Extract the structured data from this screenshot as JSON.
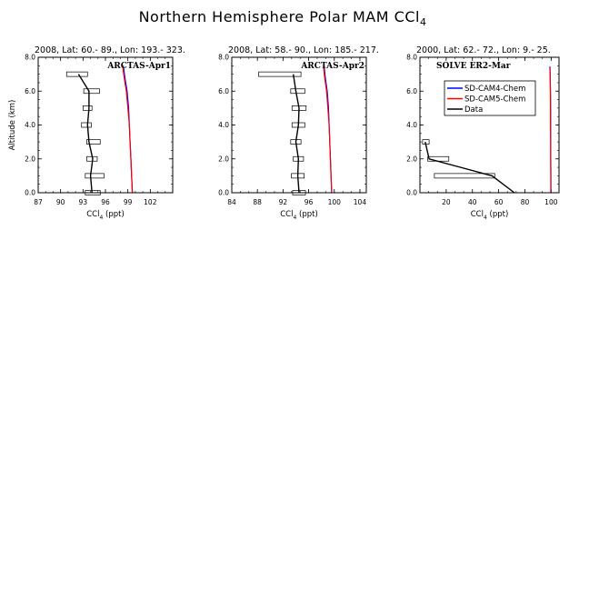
{
  "figure": {
    "title": "Northern Hemisphere Polar MAM CCl",
    "title_sub": "4"
  },
  "chart_data": [
    {
      "type": "line",
      "subtitle": "2008, Lat:  60.- 89., Lon: 193.- 323.",
      "panel_label": "ARCTAS-Apr1",
      "xlabel": "CCl",
      "xlabel_sub": "4",
      "xlabel_unit": " (ppt)",
      "ylabel": "Altitude (km)",
      "xlim": [
        87,
        105
      ],
      "ylim": [
        0,
        8
      ],
      "xticks": [
        87,
        90,
        93,
        96,
        99,
        102
      ],
      "yticks": [
        0,
        2,
        4,
        6,
        8
      ],
      "ytick_labels": [
        "0.0",
        "2.0",
        "4.0",
        "6.0",
        "8.0"
      ],
      "series": [
        {
          "name": "SD-CAM4-Chem",
          "color": "#0000ff",
          "x": [
            99.6,
            99.5,
            99.4,
            99.3,
            99.2,
            99.1,
            98.9,
            98.6,
            98.4
          ],
          "y": [
            0,
            1,
            2,
            3,
            4,
            5,
            6,
            6.8,
            7.5
          ]
        },
        {
          "name": "SD-CAM5-Chem",
          "color": "#ff0000",
          "x": [
            99.6,
            99.5,
            99.4,
            99.3,
            99.2,
            99.0,
            98.8,
            98.5,
            98.3
          ],
          "y": [
            0,
            1,
            2,
            3,
            4,
            5,
            6,
            6.8,
            7.5
          ]
        },
        {
          "name": "Data",
          "color": "#000000",
          "x": [
            94.2,
            94.0,
            94.3,
            93.8,
            93.6,
            93.8,
            93.8,
            92.4
          ],
          "y": [
            0,
            1,
            2,
            3,
            4,
            5,
            6,
            7
          ]
        }
      ],
      "ranges": [
        {
          "y": 0,
          "lo": 93.3,
          "hi": 95.3
        },
        {
          "y": 1,
          "lo": 93.3,
          "hi": 95.8
        },
        {
          "y": 2,
          "lo": 93.5,
          "hi": 94.9
        },
        {
          "y": 3,
          "lo": 93.5,
          "hi": 95.3
        },
        {
          "y": 4,
          "lo": 92.8,
          "hi": 94.1
        },
        {
          "y": 5,
          "lo": 93.0,
          "hi": 94.2
        },
        {
          "y": 6,
          "lo": 93.1,
          "hi": 95.2
        },
        {
          "y": 7,
          "lo": 90.8,
          "hi": 93.6
        }
      ]
    },
    {
      "type": "line",
      "subtitle": "2008, Lat:  58.- 90., Lon: 185.- 217.",
      "panel_label": "ARCTAS-Apr2",
      "xlabel": "CCl",
      "xlabel_sub": "4",
      "xlabel_unit": " (ppt)",
      "ylabel": "",
      "xlim": [
        84,
        105
      ],
      "ylim": [
        0,
        8
      ],
      "xticks": [
        84,
        88,
        92,
        96,
        100,
        104
      ],
      "yticks": [
        0,
        2,
        4,
        6,
        8
      ],
      "ytick_labels": [
        "0.0",
        "2.0",
        "4.0",
        "6.0",
        "8.0"
      ],
      "series": [
        {
          "name": "SD-CAM4-Chem",
          "color": "#0000ff",
          "x": [
            99.6,
            99.5,
            99.4,
            99.3,
            99.2,
            99.1,
            98.9,
            98.6,
            98.4
          ],
          "y": [
            0,
            1,
            2,
            3,
            4,
            5,
            6,
            6.8,
            7.5
          ]
        },
        {
          "name": "SD-CAM5-Chem",
          "color": "#ff0000",
          "x": [
            99.6,
            99.5,
            99.4,
            99.3,
            99.2,
            99.0,
            98.8,
            98.5,
            98.3
          ],
          "y": [
            0,
            1,
            2,
            3,
            4,
            5,
            6,
            6.8,
            7.5
          ]
        },
        {
          "name": "Data",
          "color": "#000000",
          "x": [
            94.5,
            94.3,
            94.4,
            94.0,
            94.4,
            94.5,
            94.0,
            93.6
          ],
          "y": [
            0,
            1,
            2,
            3,
            4,
            5,
            6,
            7
          ]
        }
      ],
      "ranges": [
        {
          "y": 0,
          "lo": 93.5,
          "hi": 95.5
        },
        {
          "y": 1,
          "lo": 93.3,
          "hi": 95.3
        },
        {
          "y": 2,
          "lo": 93.6,
          "hi": 95.2
        },
        {
          "y": 3,
          "lo": 93.2,
          "hi": 94.8
        },
        {
          "y": 4,
          "lo": 93.4,
          "hi": 95.4
        },
        {
          "y": 5,
          "lo": 93.4,
          "hi": 95.6
        },
        {
          "y": 6,
          "lo": 93.2,
          "hi": 95.4
        },
        {
          "y": 7,
          "lo": 88.2,
          "hi": 94.8
        }
      ]
    },
    {
      "type": "line",
      "subtitle": "2000, Lat: 62.- 72., Lon: 9.- 25.",
      "panel_label": "SOLVE ER2-Mar",
      "xlabel": "CCl",
      "xlabel_sub": "4",
      "xlabel_unit": " (ppt)",
      "ylabel": "",
      "xlim": [
        0,
        106
      ],
      "ylim": [
        0,
        8
      ],
      "xticks": [
        20,
        40,
        60,
        80,
        100
      ],
      "yticks": [
        0,
        2,
        4,
        6,
        8
      ],
      "ytick_labels": [
        "0.0",
        "2.0",
        "4.0",
        "6.0",
        "8.0"
      ],
      "series": [
        {
          "name": "SD-CAM4-Chem",
          "color": "#0000ff",
          "x": [
            99.8,
            99.8,
            99.7,
            99.7,
            99.6,
            99.6,
            99.5,
            99.3,
            99.1
          ],
          "y": [
            0,
            1,
            2,
            3,
            4,
            5,
            6,
            7,
            7.45
          ]
        },
        {
          "name": "SD-CAM5-Chem",
          "color": "#ff0000",
          "x": [
            99.7,
            99.7,
            99.6,
            99.6,
            99.5,
            99.5,
            99.4,
            99.2,
            99.0
          ],
          "y": [
            0,
            1,
            2,
            3,
            4,
            5,
            6,
            7,
            7.35
          ]
        },
        {
          "name": "Data",
          "color": "#000000",
          "x": [
            72,
            55,
            7,
            4,
            4
          ],
          "y": [
            0,
            1,
            2,
            3,
            3
          ]
        }
      ],
      "ranges": [
        {
          "y": 1,
          "lo": 11,
          "hi": 57
        },
        {
          "y": 2,
          "lo": 6,
          "hi": 22
        },
        {
          "y": 3,
          "lo": 2,
          "hi": 7
        }
      ],
      "legend": {
        "position": "top-center",
        "entries": [
          {
            "label": "SD-CAM4-Chem",
            "color": "#0000ff"
          },
          {
            "label": "SD-CAM5-Chem",
            "color": "#ff0000"
          },
          {
            "label": "Data",
            "color": "#000000"
          }
        ]
      }
    }
  ]
}
